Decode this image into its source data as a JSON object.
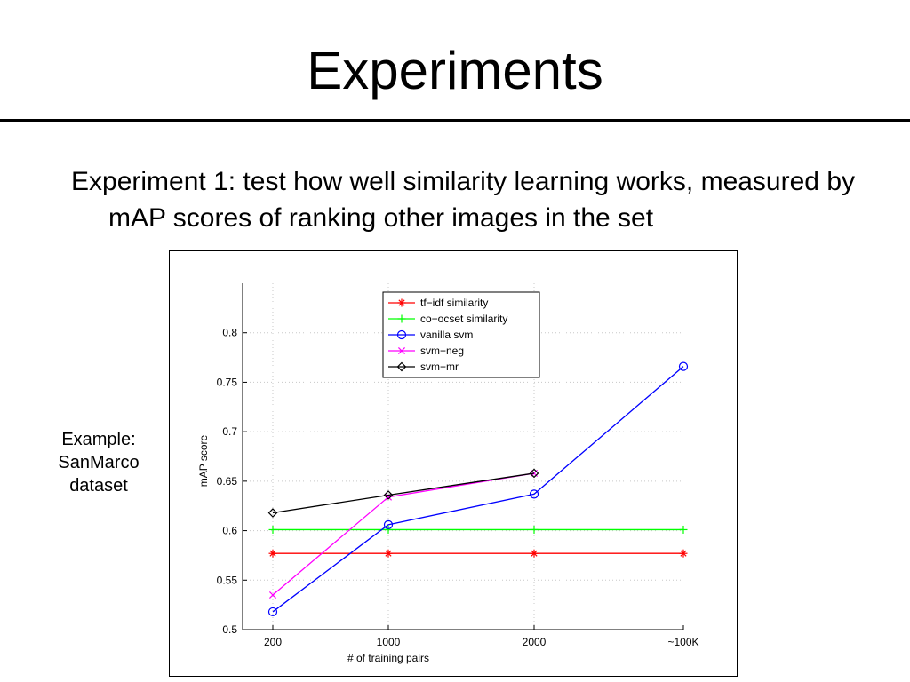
{
  "slide": {
    "title": "Experiments",
    "body": "Experiment 1: test how well similarity learning works, measured by mAP scores of ranking other images in the set",
    "caption": [
      "Example:",
      "SanMarco",
      "dataset"
    ]
  },
  "chart_data": {
    "type": "line",
    "title": "",
    "xlabel": "# of training pairs",
    "ylabel": "mAP score",
    "categories": [
      "200",
      "1000",
      "2000",
      "~100K"
    ],
    "ylim": [
      0.5,
      0.85
    ],
    "yticks": [
      0.5,
      0.55,
      0.6,
      0.65,
      0.7,
      0.75,
      0.8
    ],
    "ytick_labels": [
      "0.5",
      "0.55",
      "0.6",
      "0.65",
      "0.7",
      "0.75",
      "0.8"
    ],
    "grid": true,
    "legend_position": "top-center",
    "series": [
      {
        "name": "tf−idf similarity",
        "color": "#ff0000",
        "marker": "asterisk",
        "values": [
          0.577,
          0.577,
          0.577,
          0.577
        ]
      },
      {
        "name": "co−ocset similarity",
        "color": "#00ff00",
        "marker": "plus",
        "values": [
          0.601,
          0.601,
          0.601,
          0.601
        ]
      },
      {
        "name": "vanilla svm",
        "color": "#0000ff",
        "marker": "circle",
        "values": [
          0.518,
          0.606,
          0.637,
          0.766
        ]
      },
      {
        "name": "svm+neg",
        "color": "#ff00ff",
        "marker": "x",
        "values": [
          0.535,
          0.634,
          0.658,
          null
        ]
      },
      {
        "name": "svm+mr",
        "color": "#000000",
        "marker": "diamond",
        "values": [
          0.618,
          0.636,
          0.658,
          null
        ]
      }
    ]
  }
}
